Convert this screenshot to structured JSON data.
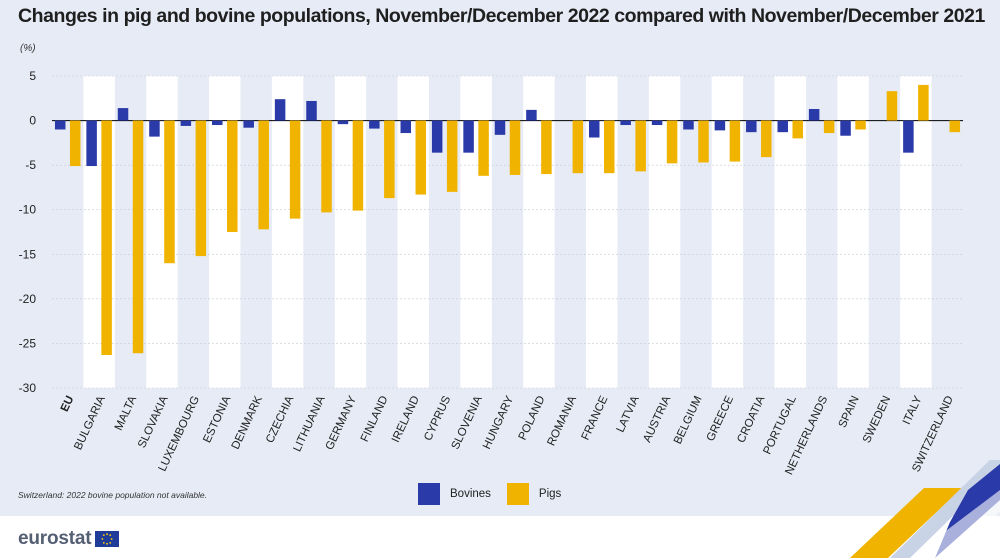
{
  "title": "Changes in pig and bovine populations, November/December 2022 compared with November/December 2021",
  "unit": "(%)",
  "footnote": "Switzerland: 2022 bovine population not available.",
  "logo_text": "eurostat",
  "colors": {
    "bovines": "#2a3aa8",
    "pigs": "#f0b400",
    "panel": "#e6ebf5",
    "band": "#ffffff"
  },
  "chart_data": {
    "type": "bar",
    "categories": [
      "EU",
      "BULGARIA",
      "MALTA",
      "SLOVAKIA",
      "LUXEMBOURG",
      "ESTONIA",
      "DENMARK",
      "CZECHIA",
      "LITHUANIA",
      "GERMANY",
      "FINLAND",
      "IRELAND",
      "CYPRUS",
      "SLOVENIA",
      "HUNGARY",
      "POLAND",
      "ROMANIA",
      "FRANCE",
      "LATVIA",
      "AUSTRIA",
      "BELGIUM",
      "GREECE",
      "CROATIA",
      "PORTUGAL",
      "NETHERLANDS",
      "SPAIN",
      "SWEDEN",
      "ITALY",
      "SWITZERLAND"
    ],
    "series": [
      {
        "name": "Bovines",
        "values": [
          -1.0,
          -5.1,
          1.4,
          -1.8,
          -0.6,
          -0.5,
          -0.8,
          2.4,
          2.2,
          -0.4,
          -0.9,
          -1.4,
          -3.6,
          -3.6,
          -1.6,
          1.2,
          null,
          -1.9,
          -0.5,
          -0.5,
          -1.0,
          -1.1,
          -1.3,
          -1.3,
          1.3,
          -1.7,
          null,
          -3.6,
          null
        ]
      },
      {
        "name": "Pigs",
        "values": [
          -5.1,
          -26.3,
          -26.1,
          -16.0,
          -15.2,
          -12.5,
          -12.2,
          -11.0,
          -10.3,
          -10.1,
          -8.7,
          -8.3,
          -8.0,
          -6.2,
          -6.1,
          -6.0,
          -5.9,
          -5.9,
          -5.7,
          -4.8,
          -4.7,
          -4.6,
          -4.1,
          -2.0,
          -1.4,
          -1.0,
          3.3,
          4.0,
          -1.3
        ]
      }
    ],
    "xlabel": "",
    "ylabel": "(%)",
    "ylim": [
      -30,
      5
    ],
    "yticks": [
      5,
      0,
      -5,
      -10,
      -15,
      -20,
      -25,
      -30
    ],
    "bold_categories": [
      "EU"
    ],
    "grid": true,
    "legend": "bottom-center"
  }
}
